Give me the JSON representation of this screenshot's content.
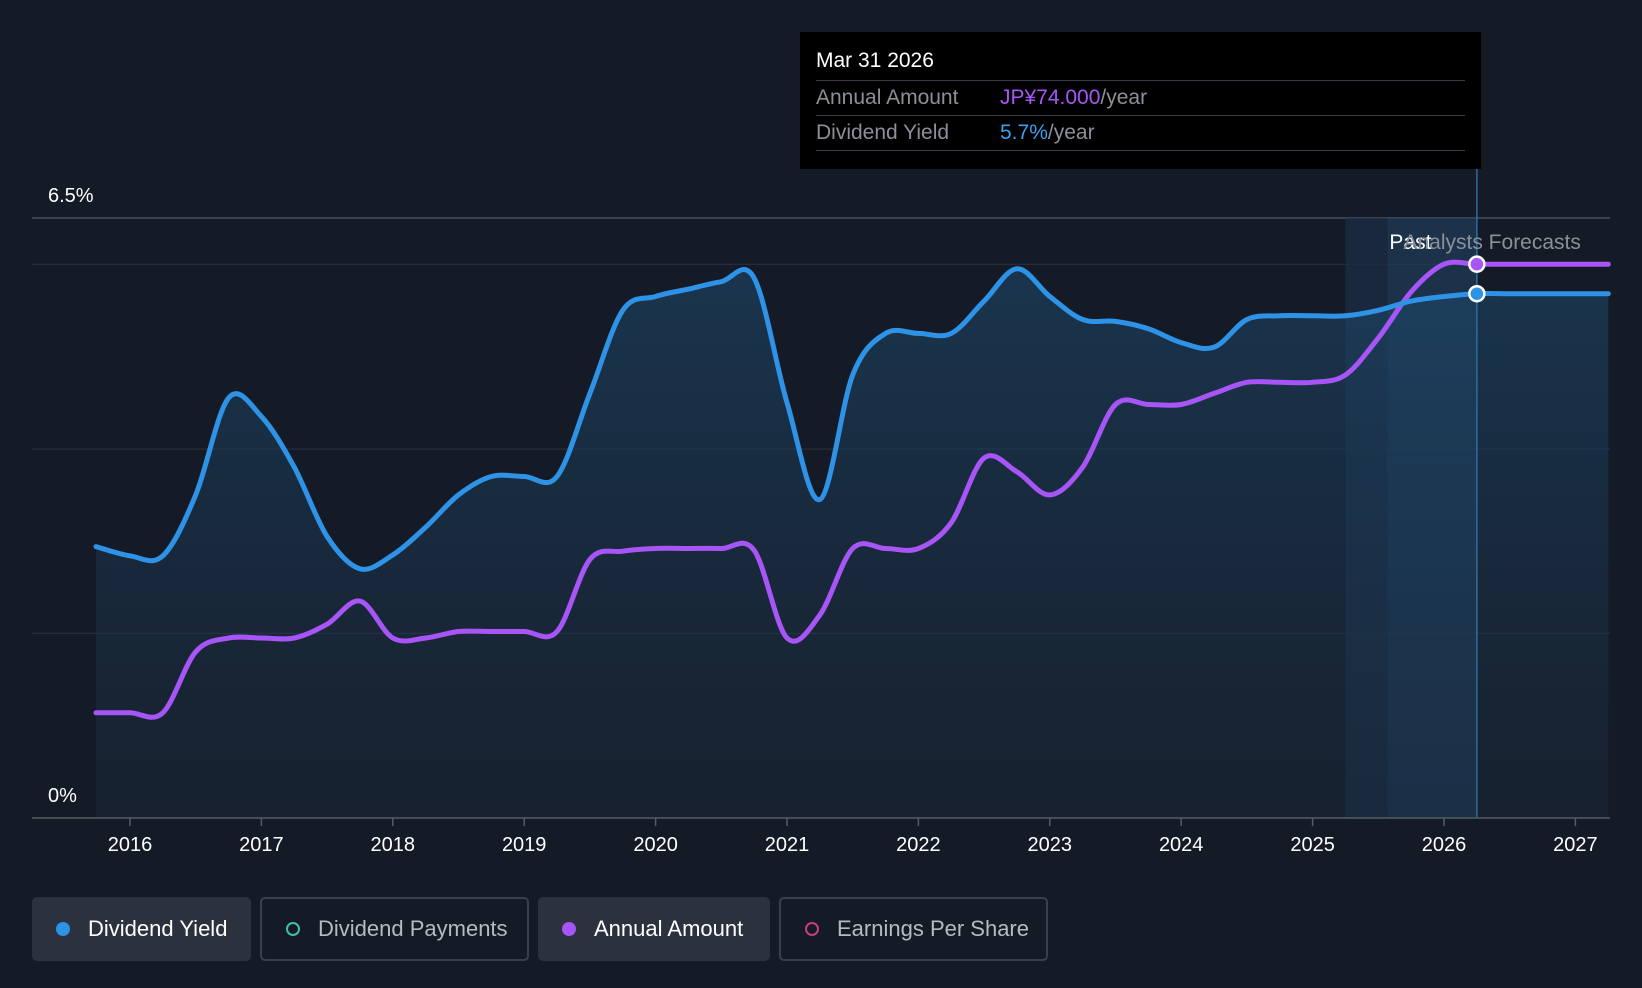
{
  "colors": {
    "yield": "#2e93e6",
    "amount": "#a855f7",
    "payments_ring": "#3fbfae",
    "eps_ring": "#c83e7d",
    "grid": "#2c3340",
    "axis": "#555c66",
    "text": "#ffffff",
    "muted": "#8b9098"
  },
  "tooltip": {
    "date": "Mar 31 2026",
    "annual_label": "Annual Amount",
    "annual_value": "JP¥74.000",
    "annual_unit": "/year",
    "yield_label": "Dividend Yield",
    "yield_value": "5.7%",
    "yield_unit": "/year"
  },
  "legend": [
    {
      "label": "Dividend Yield",
      "active": true,
      "marker": "filled",
      "color": "#2e93e6"
    },
    {
      "label": "Dividend Payments",
      "active": false,
      "marker": "ring",
      "color": "#3fbfae"
    },
    {
      "label": "Annual Amount",
      "active": true,
      "marker": "filled",
      "color": "#a855f7"
    },
    {
      "label": "Earnings Per Share",
      "active": false,
      "marker": "ring",
      "color": "#c83e7d"
    }
  ],
  "chart_data": {
    "type": "line",
    "y_top_label": "6.5%",
    "y_bottom_label": "0%",
    "ylim": [
      0,
      6.5
    ],
    "xlim": [
      2015.75,
      2027.25
    ],
    "x_ticks": [
      "2016",
      "2017",
      "2018",
      "2019",
      "2020",
      "2021",
      "2022",
      "2023",
      "2024",
      "2025",
      "2026",
      "2027"
    ],
    "past_label": "Past",
    "forecast_label": "Analysts Forecasts",
    "past_region": [
      2025.25,
      2025.57
    ],
    "forecast_region_end": 2026.25,
    "hover_x": 2026.25,
    "series": [
      {
        "name": "Dividend Yield",
        "values": [
          [
            2015.5,
            2.94
          ],
          [
            2016.0,
            2.84
          ],
          [
            2016.25,
            2.84
          ],
          [
            2016.5,
            3.5
          ],
          [
            2016.75,
            4.55
          ],
          [
            2017.0,
            4.35
          ],
          [
            2017.25,
            3.8
          ],
          [
            2017.5,
            3.05
          ],
          [
            2017.75,
            2.7
          ],
          [
            2018.0,
            2.85
          ],
          [
            2018.25,
            3.15
          ],
          [
            2018.5,
            3.5
          ],
          [
            2018.75,
            3.7
          ],
          [
            2019.0,
            3.7
          ],
          [
            2019.25,
            3.7
          ],
          [
            2019.5,
            4.6
          ],
          [
            2019.75,
            5.5
          ],
          [
            2020.0,
            5.65
          ],
          [
            2020.25,
            5.73
          ],
          [
            2020.5,
            5.81
          ],
          [
            2020.75,
            5.85
          ],
          [
            2021.0,
            4.5
          ],
          [
            2021.25,
            3.45
          ],
          [
            2021.5,
            4.8
          ],
          [
            2021.75,
            5.25
          ],
          [
            2022.0,
            5.25
          ],
          [
            2022.25,
            5.25
          ],
          [
            2022.5,
            5.6
          ],
          [
            2022.75,
            5.95
          ],
          [
            2023.0,
            5.65
          ],
          [
            2023.25,
            5.4
          ],
          [
            2023.5,
            5.38
          ],
          [
            2023.75,
            5.3
          ],
          [
            2024.0,
            5.15
          ],
          [
            2024.25,
            5.1
          ],
          [
            2024.5,
            5.4
          ],
          [
            2024.75,
            5.44
          ],
          [
            2025.0,
            5.44
          ],
          [
            2025.25,
            5.44
          ],
          [
            2025.5,
            5.5
          ],
          [
            2025.75,
            5.6
          ],
          [
            2026.0,
            5.65
          ],
          [
            2026.25,
            5.68
          ],
          [
            2026.5,
            5.68
          ],
          [
            2026.75,
            5.68
          ],
          [
            2027.0,
            5.68
          ],
          [
            2027.25,
            5.68
          ]
        ]
      },
      {
        "name": "Annual Amount",
        "values": [
          [
            2015.5,
            1.14
          ],
          [
            2016.0,
            1.14
          ],
          [
            2016.25,
            1.14
          ],
          [
            2016.5,
            1.8
          ],
          [
            2016.75,
            1.95
          ],
          [
            2017.0,
            1.95
          ],
          [
            2017.25,
            1.95
          ],
          [
            2017.5,
            2.1
          ],
          [
            2017.75,
            2.35
          ],
          [
            2018.0,
            1.95
          ],
          [
            2018.25,
            1.95
          ],
          [
            2018.5,
            2.02
          ],
          [
            2018.75,
            2.02
          ],
          [
            2019.0,
            2.02
          ],
          [
            2019.25,
            2.02
          ],
          [
            2019.5,
            2.8
          ],
          [
            2019.75,
            2.89
          ],
          [
            2020.0,
            2.92
          ],
          [
            2020.25,
            2.92
          ],
          [
            2020.5,
            2.92
          ],
          [
            2020.75,
            2.9
          ],
          [
            2021.0,
            1.95
          ],
          [
            2021.25,
            2.2
          ],
          [
            2021.5,
            2.92
          ],
          [
            2021.75,
            2.92
          ],
          [
            2022.0,
            2.92
          ],
          [
            2022.25,
            3.2
          ],
          [
            2022.5,
            3.9
          ],
          [
            2022.75,
            3.75
          ],
          [
            2023.0,
            3.5
          ],
          [
            2023.25,
            3.8
          ],
          [
            2023.5,
            4.48
          ],
          [
            2023.75,
            4.48
          ],
          [
            2024.0,
            4.48
          ],
          [
            2024.25,
            4.6
          ],
          [
            2024.5,
            4.72
          ],
          [
            2024.75,
            4.72
          ],
          [
            2025.0,
            4.72
          ],
          [
            2025.25,
            4.8
          ],
          [
            2025.5,
            5.2
          ],
          [
            2025.75,
            5.7
          ],
          [
            2026.0,
            6.0
          ],
          [
            2026.25,
            6.0
          ],
          [
            2026.5,
            6.0
          ],
          [
            2026.75,
            6.0
          ],
          [
            2027.0,
            6.0
          ],
          [
            2027.25,
            6.0
          ]
        ]
      }
    ]
  }
}
